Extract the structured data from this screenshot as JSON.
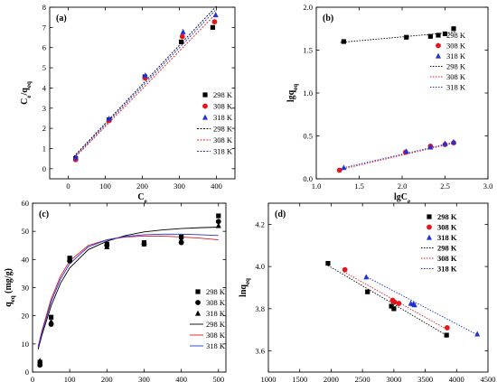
{
  "chart_data": [
    {
      "panel_label": "(a)",
      "type": "scatter",
      "xlabel": "Ce",
      "ylabel": "Ce/qeq",
      "xlim": [
        -50,
        450
      ],
      "ylim": [
        -0.5,
        8
      ],
      "xticks": [
        0,
        100,
        200,
        300,
        400
      ],
      "yticks": [
        0,
        1,
        2,
        3,
        4,
        5,
        6,
        7,
        8
      ],
      "legend_position": "bottom-right",
      "series": [
        {
          "name": "298 K",
          "marker": "square",
          "color": "#000000",
          "x": [
            20,
            110,
            207,
            305,
            390
          ],
          "y": [
            0.5,
            2.42,
            4.55,
            6.28,
            7.0
          ]
        },
        {
          "name": "308 K",
          "marker": "circle",
          "color": "#e8141c",
          "x": [
            20,
            110,
            207,
            308,
            395
          ],
          "y": [
            0.45,
            2.38,
            4.5,
            6.55,
            7.28
          ]
        },
        {
          "name": "318 K",
          "marker": "triangle",
          "color": "#1f33d8",
          "x": [
            20,
            110,
            208,
            310,
            398
          ],
          "y": [
            0.55,
            2.48,
            4.62,
            6.78,
            7.62
          ]
        }
      ],
      "fits": [
        {
          "name": "298 K",
          "color": "#000000",
          "dash": "2,1.5",
          "x": [
            15,
            400
          ],
          "y": [
            0.6,
            8.05
          ]
        },
        {
          "name": "308 K",
          "color": "#e8141c",
          "dash": "2,1.5",
          "x": [
            15,
            400
          ],
          "y": [
            0.5,
            7.7
          ]
        },
        {
          "name": "318 K",
          "color": "#1f33d8",
          "dash": "2,1.5",
          "x": [
            15,
            400
          ],
          "y": [
            0.55,
            7.9
          ]
        }
      ]
    },
    {
      "panel_label": "(b)",
      "type": "scatter",
      "xlabel": "lgCe",
      "ylabel": "lgqeq",
      "xlim": [
        1.0,
        3.0
      ],
      "ylim": [
        0.0,
        2.0
      ],
      "xticks": [
        1.0,
        1.5,
        2.0,
        2.5,
        3.0
      ],
      "yticks": [
        0.0,
        0.5,
        1.0,
        1.5,
        2.0
      ],
      "legend_position": "right",
      "series": [
        {
          "name": "298 K",
          "marker": "square",
          "color": "#000000",
          "x": [
            1.32,
            2.05,
            2.33,
            2.5,
            2.6
          ],
          "y": [
            1.6,
            1.65,
            1.66,
            1.69,
            1.75
          ]
        },
        {
          "name": "308 K",
          "marker": "circle",
          "color": "#e8141c",
          "x": [
            1.27,
            2.04,
            2.33,
            2.5,
            2.6
          ],
          "y": [
            0.1,
            0.31,
            0.38,
            0.4,
            0.42
          ]
        },
        {
          "name": "318 K",
          "marker": "triangle",
          "color": "#1f33d8",
          "x": [
            1.32,
            2.05,
            2.33,
            2.5,
            2.6
          ],
          "y": [
            0.13,
            0.32,
            0.37,
            0.41,
            0.43
          ]
        }
      ],
      "fits": [
        {
          "name": "298 K",
          "color": "#000000",
          "dash": "1.5,1.5",
          "x": [
            1.28,
            2.62
          ],
          "y": [
            1.59,
            1.71
          ]
        },
        {
          "name": "308 K",
          "color": "#e8141c",
          "dash": "1.5,1.5",
          "x": [
            1.25,
            2.62
          ],
          "y": [
            0.1,
            0.42
          ]
        },
        {
          "name": "318 K",
          "color": "#1f33d8",
          "dash": "1.5,1.5",
          "x": [
            1.28,
            2.62
          ],
          "y": [
            0.12,
            0.43
          ]
        }
      ]
    },
    {
      "panel_label": "(c)",
      "type": "scatter",
      "xlabel": "C0 (mg/L)",
      "ylabel": "qeq (mg/g)",
      "xlim": [
        0,
        520
      ],
      "ylim": [
        0,
        60
      ],
      "xticks": [
        0,
        100,
        200,
        300,
        400,
        500
      ],
      "yticks": [
        0,
        10,
        20,
        30,
        40,
        50,
        60
      ],
      "legend_position": "right",
      "series": [
        {
          "name": "298 K",
          "marker": "square",
          "color": "#000000",
          "x": [
            20,
            50,
            100,
            200,
            300,
            400,
            500
          ],
          "y": [
            3.5,
            19.5,
            40.5,
            45.5,
            46.0,
            48.0,
            55.5
          ]
        },
        {
          "name": "308 K",
          "marker": "circle",
          "color": "#000000",
          "x": [
            20,
            50,
            100,
            200,
            300,
            400,
            500
          ],
          "y": [
            2.5,
            17.0,
            39.5,
            45.0,
            45.5,
            46.0,
            53.5
          ]
        },
        {
          "name": "318 K",
          "marker": "triangle",
          "color": "#000000",
          "x": [
            20,
            50,
            100,
            200,
            300,
            400,
            500
          ],
          "y": [
            4.0,
            18.0,
            40.0,
            44.5,
            45.5,
            47.0,
            52.0
          ]
        }
      ],
      "fits": [
        {
          "name": "298 K",
          "color": "#000000",
          "dash": "",
          "x": [
            15,
            25,
            50,
            75,
            100,
            150,
            200,
            250,
            300,
            350,
            400,
            450,
            500
          ],
          "y": [
            8.0,
            13.0,
            23.5,
            31.5,
            37.0,
            43.5,
            46.5,
            48.5,
            49.8,
            50.5,
            51.0,
            51.3,
            51.5
          ]
        },
        {
          "name": "308 K",
          "color": "#e8141c",
          "dash": "",
          "x": [
            15,
            25,
            50,
            75,
            100,
            150,
            200,
            250,
            300,
            350,
            400,
            450,
            500
          ],
          "y": [
            9.0,
            14.5,
            26.0,
            34.0,
            39.5,
            45.0,
            47.0,
            48.0,
            48.3,
            48.3,
            48.0,
            47.6,
            47.0
          ]
        },
        {
          "name": "318 K",
          "color": "#1f33d8",
          "dash": "",
          "x": [
            15,
            25,
            50,
            75,
            100,
            150,
            200,
            250,
            300,
            350,
            400,
            450,
            500
          ],
          "y": [
            8.5,
            13.8,
            25.0,
            33.0,
            38.5,
            44.5,
            47.0,
            48.2,
            48.8,
            49.0,
            49.0,
            48.8,
            48.5
          ]
        }
      ]
    },
    {
      "panel_label": "(d)",
      "type": "scatter",
      "xlabel": "ε2",
      "ylabel": "lnqeq",
      "xlim": [
        1000,
        4500
      ],
      "ylim": [
        3.5,
        4.3
      ],
      "xticks": [
        1000,
        1500,
        2000,
        2500,
        3000,
        3500,
        4000,
        4500
      ],
      "yticks": [
        3.6,
        3.8,
        4.0,
        4.2
      ],
      "legend_position": "top-right",
      "series": [
        {
          "name": "298 K",
          "marker": "square",
          "color": "#000000",
          "x": [
            1950,
            2580,
            2960,
            3000,
            3840
          ],
          "y": [
            4.015,
            3.88,
            3.812,
            3.8,
            3.675
          ]
        },
        {
          "name": "308 K",
          "marker": "circle",
          "color": "#e8141c",
          "x": [
            2220,
            2980,
            3010,
            3080,
            3850
          ],
          "y": [
            3.985,
            3.84,
            3.832,
            3.825,
            3.71
          ]
        },
        {
          "name": "318 K",
          "marker": "triangle",
          "color": "#1f33d8",
          "x": [
            2560,
            3270,
            3310,
            3330,
            4330
          ],
          "y": [
            3.95,
            3.825,
            3.822,
            3.818,
            3.68
          ]
        }
      ],
      "fits": [
        {
          "name": "298 K",
          "color": "#000000",
          "dash": "1.5,1.5",
          "x": [
            1950,
            3850
          ],
          "y": [
            4.005,
            3.672
          ]
        },
        {
          "name": "308 K",
          "color": "#e8141c",
          "dash": "1.5,1.5",
          "x": [
            2200,
            3860
          ],
          "y": [
            3.975,
            3.7
          ]
        },
        {
          "name": "318 K",
          "color": "#1f33d8",
          "dash": "1.5,1.5",
          "x": [
            2540,
            4340
          ],
          "y": [
            3.955,
            3.675
          ]
        }
      ]
    }
  ]
}
